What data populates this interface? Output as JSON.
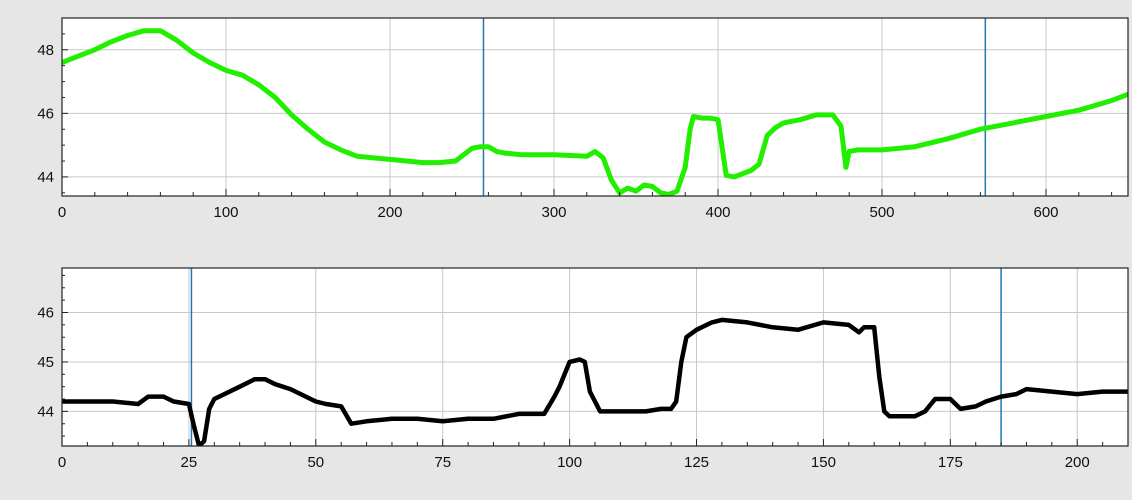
{
  "chart_data": [
    {
      "type": "line",
      "xlim": [
        0,
        650
      ],
      "ylim": [
        43.4,
        49.0
      ],
      "x_ticks": [
        0,
        100,
        200,
        300,
        400,
        500,
        600
      ],
      "y_ticks": [
        44,
        46,
        48
      ],
      "grid": true,
      "line_color": "#22ee00",
      "cursor_color": "#1f77b4",
      "cursors_x": [
        257,
        563
      ],
      "series": [
        {
          "x": [
            0,
            10,
            20,
            30,
            40,
            50,
            60,
            70,
            80,
            90,
            100,
            110,
            120,
            130,
            140,
            150,
            160,
            170,
            180,
            190,
            200,
            210,
            220,
            230,
            240,
            250,
            255,
            260,
            265,
            270,
            280,
            300,
            320,
            325,
            330,
            335,
            340,
            345,
            350,
            355,
            360,
            365,
            370,
            375,
            378,
            380,
            383,
            385,
            390,
            395,
            400,
            405,
            410,
            415,
            420,
            425,
            430,
            435,
            440,
            450,
            460,
            470,
            475,
            478,
            480,
            485,
            500,
            520,
            540,
            560,
            580,
            600,
            620,
            640,
            650
          ],
          "y": [
            47.6,
            47.8,
            48.0,
            48.25,
            48.45,
            48.6,
            48.6,
            48.3,
            47.9,
            47.6,
            47.35,
            47.2,
            46.9,
            46.5,
            45.95,
            45.5,
            45.1,
            44.85,
            44.65,
            44.6,
            44.55,
            44.5,
            44.45,
            44.45,
            44.5,
            44.9,
            44.95,
            44.95,
            44.8,
            44.75,
            44.7,
            44.7,
            44.65,
            44.8,
            44.6,
            43.9,
            43.5,
            43.65,
            43.55,
            43.75,
            43.7,
            43.5,
            43.45,
            43.55,
            44.0,
            44.3,
            45.5,
            45.9,
            45.85,
            45.85,
            45.8,
            44.05,
            44.0,
            44.1,
            44.2,
            44.4,
            45.3,
            45.55,
            45.7,
            45.8,
            45.95,
            45.95,
            45.6,
            44.3,
            44.8,
            44.85,
            44.85,
            44.95,
            45.2,
            45.5,
            45.7,
            45.9,
            46.1,
            46.4,
            46.6
          ]
        }
      ]
    },
    {
      "type": "line",
      "xlim": [
        0,
        210
      ],
      "ylim": [
        43.3,
        46.9
      ],
      "x_ticks": [
        0,
        25,
        50,
        75,
        100,
        125,
        150,
        175,
        200
      ],
      "y_ticks": [
        44,
        45,
        46
      ],
      "grid": true,
      "line_color": "#000000",
      "cursor_color": "#1f77b4",
      "cursors_x": [
        25.5,
        185
      ],
      "series": [
        {
          "x": [
            0,
            5,
            10,
            15,
            17,
            20,
            22,
            25,
            26,
            27,
            28,
            29,
            30,
            35,
            38,
            40,
            42,
            45,
            50,
            52,
            55,
            57,
            60,
            65,
            70,
            75,
            80,
            85,
            90,
            95,
            97,
            98,
            100,
            102,
            103,
            104,
            106,
            110,
            115,
            118,
            120,
            121,
            122,
            123,
            125,
            128,
            130,
            135,
            140,
            145,
            150,
            155,
            157,
            158,
            160,
            161,
            162,
            163,
            165,
            168,
            170,
            172,
            175,
            177,
            180,
            182,
            185,
            188,
            190,
            195,
            200,
            205,
            210
          ],
          "y": [
            44.2,
            44.2,
            44.2,
            44.15,
            44.3,
            44.3,
            44.2,
            44.15,
            43.7,
            43.3,
            43.4,
            44.05,
            44.25,
            44.5,
            44.65,
            44.65,
            44.55,
            44.45,
            44.2,
            44.15,
            44.1,
            43.75,
            43.8,
            43.85,
            43.85,
            43.8,
            43.85,
            43.85,
            43.95,
            43.95,
            44.3,
            44.5,
            45.0,
            45.05,
            45.0,
            44.4,
            44.0,
            44.0,
            44.0,
            44.05,
            44.05,
            44.2,
            45.0,
            45.5,
            45.65,
            45.8,
            45.85,
            45.8,
            45.7,
            45.65,
            45.8,
            45.75,
            45.6,
            45.7,
            45.7,
            44.7,
            44.0,
            43.9,
            43.9,
            43.9,
            44.0,
            44.25,
            44.25,
            44.05,
            44.1,
            44.2,
            44.3,
            44.35,
            44.45,
            44.4,
            44.35,
            44.4,
            44.4
          ]
        }
      ]
    }
  ]
}
